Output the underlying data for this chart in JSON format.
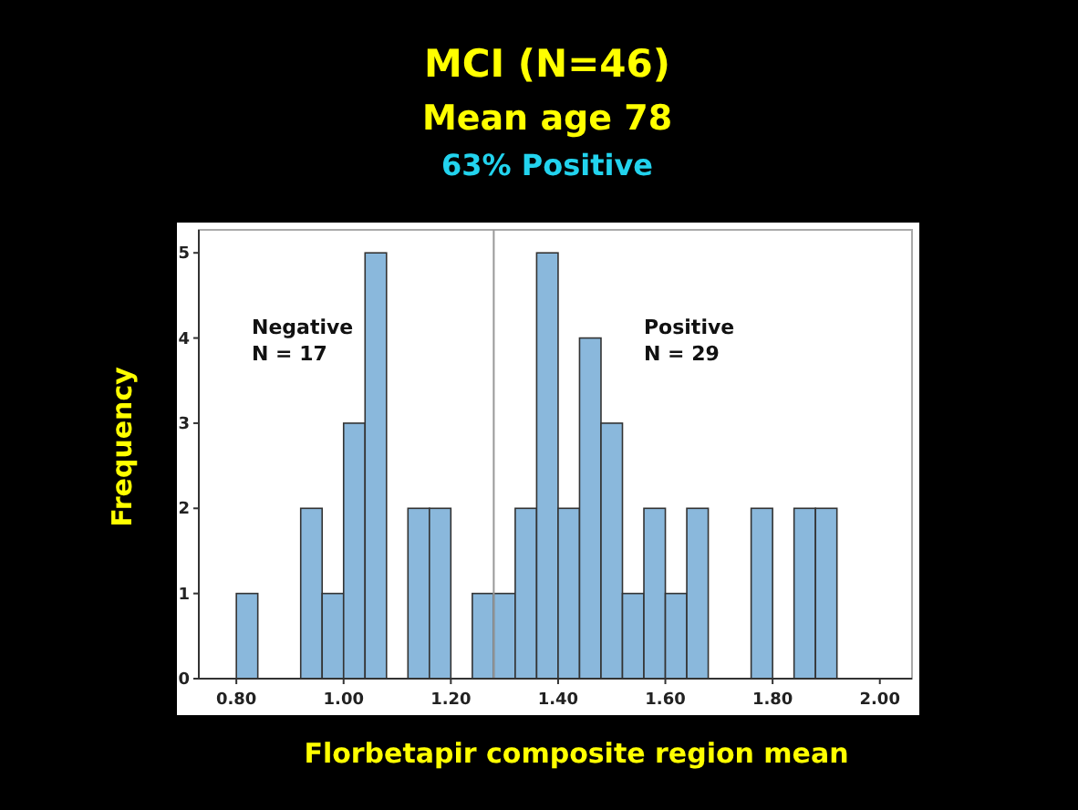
{
  "chart_data": {
    "type": "histogram",
    "title": "MCI (N=46)",
    "subtitle": "Mean age 78",
    "xlabel": "Florbetapir composite region mean",
    "ylabel": "Frequency",
    "annotations": [
      "63% Positive",
      "Negative\nN = 17",
      "Positive\nN = 29"
    ],
    "bins": [
      0.8,
      0.84,
      0.88,
      0.92,
      0.96,
      1.0,
      1.04,
      1.08,
      1.12,
      1.16,
      1.2,
      1.24,
      1.28,
      1.32,
      1.36,
      1.4,
      1.44,
      1.48,
      1.52,
      1.56,
      1.6,
      1.64,
      1.68,
      1.72,
      1.76,
      1.8,
      1.84,
      1.88,
      1.92
    ],
    "values": [
      1,
      0,
      0,
      2,
      1,
      3,
      5,
      0,
      2,
      2,
      0,
      1,
      1,
      2,
      5,
      2,
      4,
      3,
      1,
      2,
      1,
      2,
      0,
      0,
      2,
      0,
      2,
      2
    ],
    "color": "#8ab8dc",
    "xlim": [
      0.73,
      2.06
    ],
    "xticks": [
      {
        "value": 0.8,
        "label": "0.80"
      },
      {
        "value": 1.0,
        "label": "1.00"
      },
      {
        "value": 1.2,
        "label": "1.20"
      },
      {
        "value": 1.4,
        "label": "1.40"
      },
      {
        "value": 1.6,
        "label": "1.60"
      },
      {
        "value": 1.8,
        "label": "1.80"
      },
      {
        "value": 2.0,
        "label": "2.00"
      }
    ],
    "ylim": [
      0,
      5.27
    ],
    "yticks": [
      0,
      1,
      2,
      3,
      4,
      5
    ],
    "ref_lines": [
      {
        "axis": "x",
        "value": 1.28,
        "color": "#999999"
      }
    ],
    "grid": false
  }
}
